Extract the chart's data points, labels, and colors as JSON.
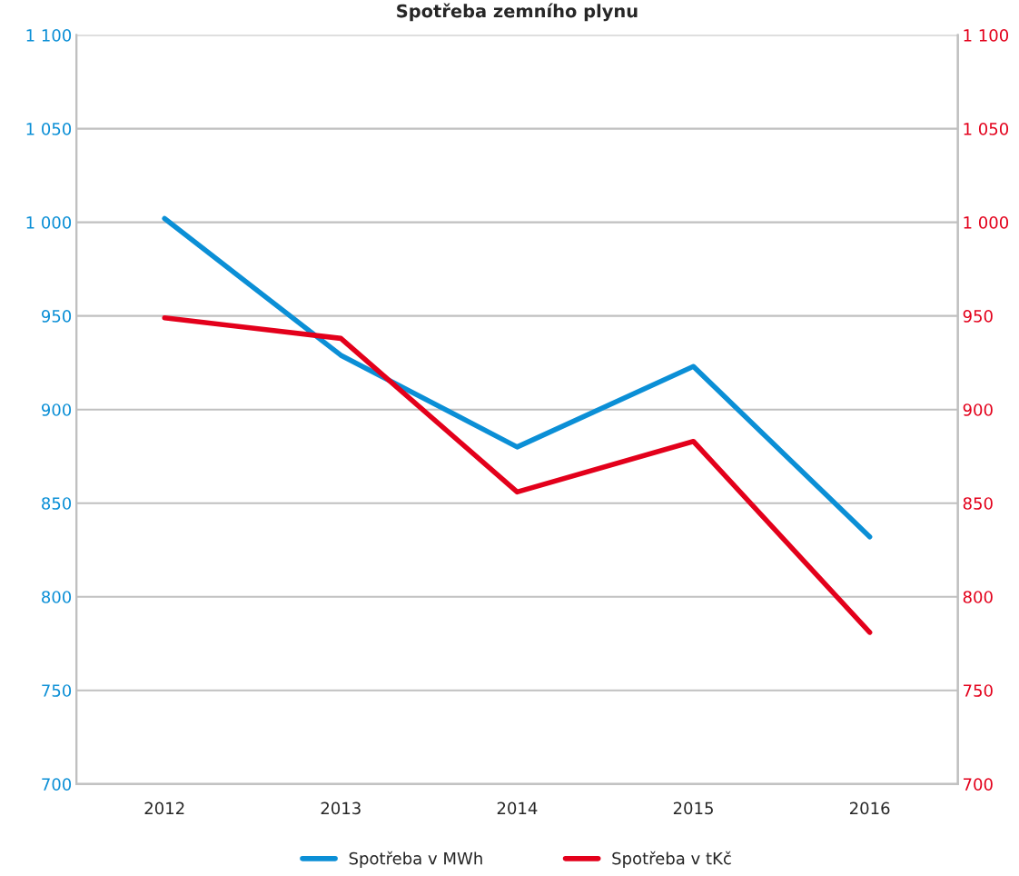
{
  "chart_data": {
    "type": "line",
    "title": "Spotřeba zemního plynu",
    "categories": [
      "2012",
      "2013",
      "2014",
      "2015",
      "2016"
    ],
    "series": [
      {
        "name": "Spotřeba v MWh",
        "color": "#0b8fd6",
        "values": [
          1002,
          929,
          880,
          923,
          832
        ]
      },
      {
        "name": "Spotřeba v tKč",
        "color": "#e3001b",
        "values": [
          949,
          938,
          856,
          883,
          781
        ],
        "axis": "y2"
      }
    ],
    "ylim": [
      700,
      1100
    ],
    "yticks": [
      700,
      750,
      800,
      850,
      900,
      950,
      {
        "value": 1000,
        "label": "1 000"
      },
      {
        "value": 1050,
        "label": "1 050"
      },
      {
        "value": 1100,
        "label": "1 100"
      }
    ],
    "y2lim": [
      700,
      1100
    ],
    "y2ticks": [
      700,
      750,
      800,
      850,
      900,
      950,
      {
        "value": 1000,
        "label": "1 000"
      },
      {
        "value": 1050,
        "label": "1 050"
      },
      {
        "value": 1100,
        "label": "1 100"
      }
    ],
    "grid": "y",
    "legend": "bottom",
    "marker": "none",
    "line_style": "solid"
  }
}
